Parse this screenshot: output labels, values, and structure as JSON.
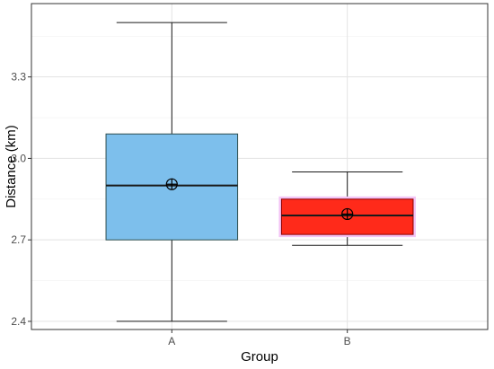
{
  "chart_data": {
    "type": "box",
    "title": "",
    "xlabel": "Group",
    "ylabel": "Distance (km)",
    "ylim": [
      2.37,
      3.57
    ],
    "y_ticks": [
      2.4,
      2.7,
      3.0,
      3.3
    ],
    "y_tick_labels": [
      "2.4",
      "2.7",
      "3.0",
      "3.3"
    ],
    "grid": true,
    "legend": "none",
    "categories": [
      "A",
      "B"
    ],
    "boxes": [
      {
        "category": "A",
        "whisker_low": 2.4,
        "q1": 2.7,
        "median": 2.9,
        "q3": 3.09,
        "whisker_high": 3.5,
        "mean": 2.905,
        "fill": "#7dbfec",
        "border": "#2f4f4f"
      },
      {
        "category": "B",
        "whisker_low": 2.68,
        "q1": 2.72,
        "median": 2.79,
        "q3": 2.85,
        "whisker_high": 2.95,
        "mean": 2.795,
        "fill": "#ff2a1a",
        "border": "#8b0000",
        "glow": "#f3c4f5"
      }
    ]
  }
}
